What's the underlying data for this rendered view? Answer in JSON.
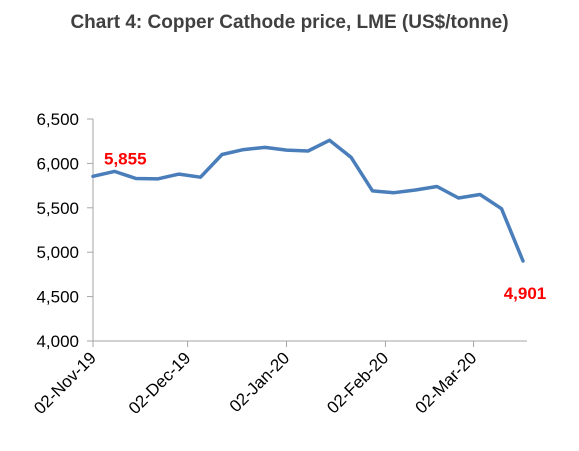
{
  "chart_data": {
    "type": "line",
    "title": "Chart 4: Copper Cathode price, LME (US$/tonne)",
    "xlabel": "",
    "ylabel": "",
    "ylim": [
      4000,
      6500
    ],
    "yticks": [
      4000,
      4500,
      5000,
      5500,
      6000,
      6500
    ],
    "ytick_labels": [
      "4,000",
      "4,500",
      "5,000",
      "5,500",
      "6,000",
      "6,500"
    ],
    "xtick_labels": [
      "02-Nov-19",
      "02-Dec-19",
      "02-Jan-20",
      "02-Feb-20",
      "02-Mar-20"
    ],
    "grid": false,
    "legend": "none",
    "line_color": "#4a7ebb",
    "label_color": "#ff0000",
    "series": [
      {
        "x": [
          "01-Nov-19",
          "08-Nov-19",
          "15-Nov-19",
          "22-Nov-19",
          "29-Nov-19",
          "06-Dec-19",
          "13-Dec-19",
          "20-Dec-19",
          "27-Dec-19",
          "03-Jan-20",
          "10-Jan-20",
          "17-Jan-20",
          "24-Jan-20",
          "31-Jan-20",
          "07-Feb-20",
          "14-Feb-20",
          "21-Feb-20",
          "28-Feb-20",
          "06-Mar-20",
          "13-Mar-20",
          "20-Mar-20"
        ],
        "values": [
          5855,
          5910,
          5830,
          5825,
          5880,
          5845,
          6100,
          6155,
          6180,
          6150,
          6140,
          6260,
          6070,
          5690,
          5670,
          5700,
          5740,
          5610,
          5650,
          5490,
          4901
        ]
      }
    ],
    "annotations": [
      {
        "text": "5,855",
        "point_index": 0
      },
      {
        "text": "4,901",
        "point_index": 20
      }
    ]
  }
}
